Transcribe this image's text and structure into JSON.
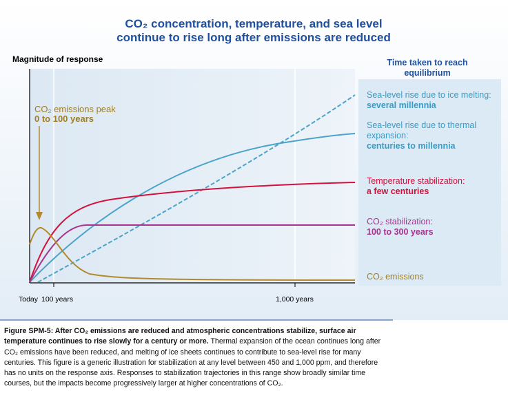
{
  "title_line1": "CO₂ concentration, temperature, and sea level",
  "title_line2": "continue to rise long after emissions are reduced",
  "y_axis_label": "Magnitude of response",
  "panel_title_line1": "Time taken to reach",
  "panel_title_line2": "equilibrium",
  "x_labels": [
    "Today",
    "100 years",
    "1,000 years"
  ],
  "peak_label": {
    "line1": "CO₂ emissions peak",
    "line2": "0 to 100 years"
  },
  "curve_labels": [
    {
      "line1": "Sea-level rise due to ice melting:",
      "line2": "several millennia"
    },
    {
      "line1": "Sea-level rise due to thermal",
      "line2": "expansion:",
      "line3": "centuries to millennia"
    },
    {
      "line1": "Temperature stabilization:",
      "line2": "a few centuries"
    },
    {
      "line1": "CO₂ stabilization:",
      "line2": "100 to 300 years"
    },
    {
      "line1": "CO₂ emissions"
    }
  ],
  "caption": {
    "bold": "Figure SPM-5: After CO₂ emissions are reduced and atmospheric concentrations stabilize, surface air temperature continues to rise slowly for a century or more.",
    "text": " Thermal expansion of the ocean continues long after CO₂ emissions have been reduced, and melting of ice sheets continues to contribute to sea-level rise for many centuries. This figure is a generic illustration for stabilization at any level between 450 and 1,000 ppm, and therefore has no units on the response axis. Responses to stabilization trajectories in this range show broadly similar time courses, but the impacts become progressively larger at higher concentrations of CO₂."
  }
}
